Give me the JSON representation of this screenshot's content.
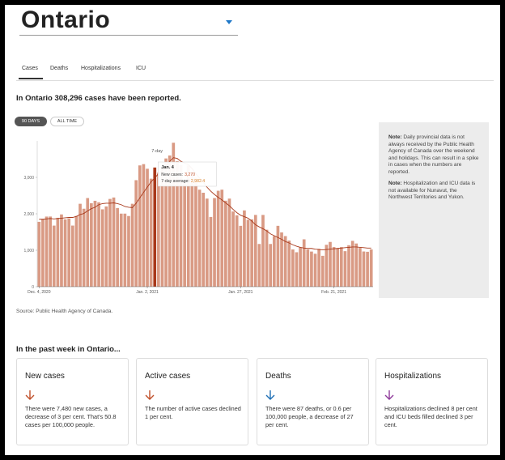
{
  "header": {
    "title": "Ontario"
  },
  "tabs": [
    "Cases",
    "Deaths",
    "Hospitalizations",
    "ICU"
  ],
  "summary": "In Ontario 308,296 cases have been reported.",
  "range_buttons": [
    "90 DAYS",
    "ALL TIME"
  ],
  "chart_data": {
    "type": "bar",
    "categories": [
      "Dec. 4, 2020",
      null,
      null,
      null,
      null,
      null,
      null,
      null,
      null,
      null,
      null,
      null,
      null,
      null,
      null,
      null,
      null,
      null,
      null,
      null,
      null,
      null,
      null,
      null,
      null,
      null,
      null,
      null,
      null,
      "Jan. 2, 2021",
      null,
      null,
      null,
      null,
      null,
      null,
      null,
      null,
      null,
      null,
      null,
      null,
      null,
      null,
      null,
      null,
      null,
      null,
      null,
      null,
      null,
      null,
      null,
      null,
      "Jan. 27, 2021",
      null,
      null,
      null,
      null,
      null,
      null,
      null,
      null,
      null,
      null,
      null,
      null,
      null,
      null,
      null,
      null,
      null,
      null,
      null,
      null,
      null,
      null,
      null,
      null,
      "Feb. 21, 2021",
      null,
      null,
      null,
      null,
      null,
      null,
      null,
      null,
      null,
      null
    ],
    "series": [
      {
        "type": "bar",
        "color": "#d99a84",
        "values": [
          1780,
          1859,
          1924,
          1925,
          1676,
          1890,
          1983,
          1848,
          1873,
          1677,
          1940,
          2275,
          2139,
          2432,
          2290,
          2357,
          2316,
          2123,
          2202,
          2408,
          2447,
          2159,
          2005,
          2005,
          1939,
          2275,
          2923,
          3328,
          3363,
          3236,
          2964,
          3270,
          3128,
          3266,
          3519,
          3600,
          3950,
          3443,
          3338,
          2903,
          3326,
          3056,
          2998,
          2662,
          2578,
          2417,
          1913,
          2432,
          2632,
          2662,
          2359,
          2417,
          2063,
          1958,
          1670,
          2093,
          1837,
          1848,
          1969,
          1172,
          1969,
          1563,
          1172,
          1388,
          1670,
          1489,
          1388,
          1265,
          1022,
          945,
          1076,
          1300,
          1022,
          964,
          904,
          1038,
          847,
          1150,
          1228,
          1087,
          1058,
          1087,
          975,
          1138,
          1258,
          1185,
          1064,
          966,
          958,
          1023
        ]
      },
      {
        "type": "line",
        "color": "#a8381a",
        "values": [
          1850,
          1850,
          1860,
          1870,
          1860,
          1870,
          1880,
          1890,
          1900,
          1900,
          1930,
          1980,
          2010,
          2080,
          2140,
          2180,
          2250,
          2280,
          2290,
          2290,
          2300,
          2280,
          2250,
          2200,
          2180,
          2170,
          2290,
          2440,
          2590,
          2730,
          2880,
          2982.4,
          3100,
          3190,
          3300,
          3440,
          3540,
          3520,
          3440,
          3390,
          3350,
          3240,
          3100,
          2980,
          2870,
          2730,
          2620,
          2530,
          2450,
          2380,
          2300,
          2220,
          2120,
          2030,
          1960,
          1920,
          1880,
          1800,
          1700,
          1640,
          1590,
          1530,
          1450,
          1400,
          1350,
          1300,
          1240,
          1200,
          1150,
          1110,
          1080,
          1060,
          1050,
          1050,
          1030,
          1020,
          1010,
          1020,
          1030,
          1040,
          1050,
          1060,
          1070,
          1080,
          1090,
          1090,
          1080,
          1070,
          1060,
          1060
        ]
      }
    ],
    "highlight": 31,
    "highlight_color": "#a8381a",
    "line_label": "7-day",
    "tooltip": {
      "title": "Jan. 4",
      "lines": [
        {
          "label": "New cases:",
          "value": "3,270",
          "color": "#c0502a"
        },
        {
          "label": "7-day average:",
          "value": "2,982.4",
          "color": "#d9832a"
        }
      ]
    },
    "ylim": [
      0,
      4000
    ],
    "yticks": [
      0,
      {
        "value": 1000,
        "label": "1,000"
      },
      {
        "value": 2000,
        "label": "2,000"
      },
      {
        "value": 3000,
        "label": "3,000"
      }
    ]
  },
  "notes": [
    {
      "label": "Note:",
      "text": "Daily provincial data is not always received by the Public Health Agency of Canada over the weekend and holidays. This can result in a spike in cases when the numbers are reported."
    },
    {
      "label": "Note:",
      "text": "Hospitalization and ICU data is not available for Nunavut, the Northwest Territories and Yukon."
    }
  ],
  "source": "Source: Public Health Agency of Canada.",
  "week_heading": "In the past week in Ontario...",
  "cards": [
    {
      "title": "New cases",
      "text": "There were 7,480 new cases, a decrease of 3 per cent. That's 50.8 cases per 100,000 people."
    },
    {
      "title": "Active cases",
      "text": "The number of active cases declined 1 per cent."
    },
    {
      "title": "Deaths",
      "text": "There were 87 deaths, or 0.6 per 100,000 people, a decrease of 27 per cent."
    },
    {
      "title": "Hospitalizations",
      "text": "Hospitalizations declined 8 per cent and ICU beds filled declined 3 per cent."
    }
  ]
}
